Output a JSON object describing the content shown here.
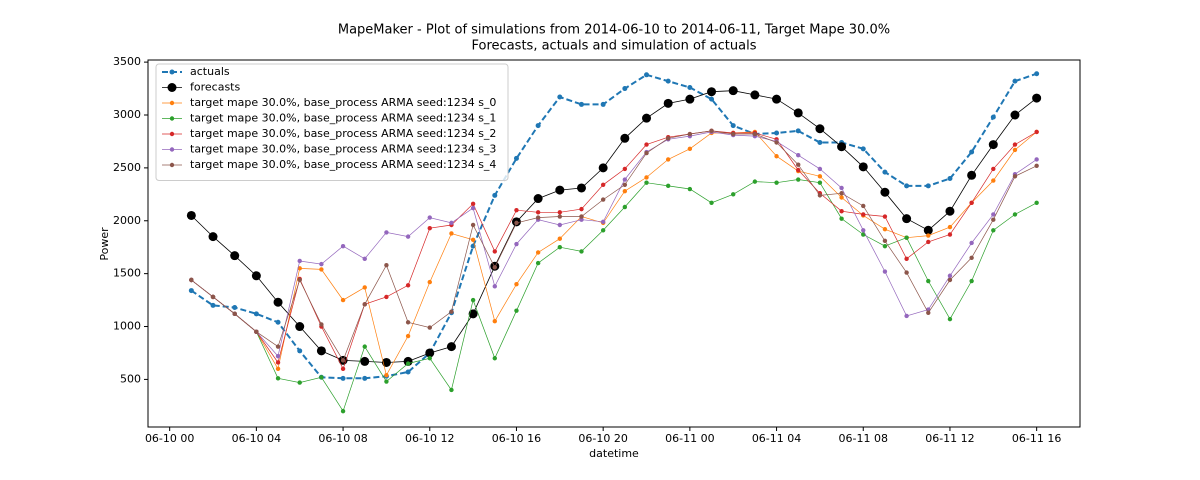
{
  "chart_data": {
    "type": "line",
    "title": "MapeMaker - Plot of simulations from 2014-06-10 to 2014-06-11, Target Mape 30.0%",
    "subtitle": "Forecasts, actuals and simulation of actuals",
    "x_label": "datetime",
    "y_label": "Power",
    "x": [
      "06-10 01",
      "06-10 02",
      "06-10 03",
      "06-10 04",
      "06-10 05",
      "06-10 06",
      "06-10 07",
      "06-10 08",
      "06-10 09",
      "06-10 10",
      "06-10 11",
      "06-10 12",
      "06-10 13",
      "06-10 14",
      "06-10 15",
      "06-10 16",
      "06-10 17",
      "06-10 18",
      "06-10 19",
      "06-10 20",
      "06-10 21",
      "06-10 22",
      "06-10 23",
      "06-11 00",
      "06-11 01",
      "06-11 02",
      "06-11 03",
      "06-11 04",
      "06-11 05",
      "06-11 06",
      "06-11 07",
      "06-11 08",
      "06-11 09",
      "06-11 10",
      "06-11 11",
      "06-11 12",
      "06-11 13",
      "06-11 14",
      "06-11 15",
      "06-11 16"
    ],
    "xlim": [
      "06-09 23",
      "06-11 18"
    ],
    "xticks": [
      "06-10 00",
      "06-10 04",
      "06-10 08",
      "06-10 12",
      "06-10 16",
      "06-10 20",
      "06-11 00",
      "06-11 04",
      "06-11 08",
      "06-11 12",
      "06-11 16"
    ],
    "ylim": [
      50,
      3520
    ],
    "yticks": [
      500,
      1000,
      1500,
      2000,
      2500,
      3000,
      3500
    ],
    "legend": "upper left",
    "series": [
      {
        "name": "actuals",
        "color": "#1f77b4",
        "linestyle": "dashed",
        "linewidth": 2,
        "markersize": 2.5,
        "values": [
          1340,
          1200,
          1180,
          1120,
          1040,
          770,
          520,
          510,
          510,
          530,
          570,
          750,
          1130,
          1760,
          2240,
          2590,
          2900,
          3170,
          3100,
          3100,
          3250,
          3380,
          3320,
          3260,
          3150,
          2900,
          2820,
          2830,
          2850,
          2740,
          2740,
          2680,
          2460,
          2330,
          2330,
          2400,
          2650,
          2980,
          3320,
          3390
        ]
      },
      {
        "name": "forecasts",
        "color": "#000000",
        "linestyle": "solid",
        "linewidth": 0.8,
        "markersize": 4.5,
        "values": [
          2050,
          1850,
          1670,
          1480,
          1230,
          1000,
          770,
          680,
          670,
          660,
          670,
          750,
          810,
          1120,
          1570,
          1990,
          2210,
          2290,
          2310,
          2500,
          2780,
          2970,
          3110,
          3150,
          3220,
          3230,
          3190,
          3150,
          3020,
          2870,
          2700,
          2510,
          2270,
          2020,
          1910,
          2090,
          2430,
          2720,
          3000,
          3160
        ]
      },
      {
        "name": "target mape 30.0%, base_process ARMA  seed:1234 s_0",
        "color": "#ff7f0e",
        "linestyle": "solid",
        "linewidth": 0.7,
        "markersize": 2.2,
        "values": [
          1440,
          1280,
          1120,
          950,
          600,
          1550,
          1540,
          1250,
          1370,
          540,
          910,
          1420,
          1880,
          1820,
          1050,
          1400,
          1700,
          1830,
          2040,
          1980,
          2280,
          2410,
          2580,
          2680,
          2830,
          2830,
          2840,
          2610,
          2470,
          2420,
          2220,
          2050,
          1920,
          1840,
          1860,
          1940,
          2170,
          2380,
          2670,
          2840
        ]
      },
      {
        "name": "target mape 30.0%, base_process ARMA  seed:1234 s_1",
        "color": "#2ca02c",
        "linestyle": "solid",
        "linewidth": 0.7,
        "markersize": 2.2,
        "values": [
          1440,
          1280,
          1120,
          950,
          510,
          470,
          520,
          200,
          810,
          480,
          650,
          700,
          400,
          1250,
          700,
          1150,
          1600,
          1750,
          1710,
          1910,
          2130,
          2360,
          2330,
          2300,
          2170,
          2250,
          2370,
          2360,
          2390,
          2360,
          2020,
          1870,
          1760,
          1840,
          1430,
          1070,
          1430,
          1910,
          2060,
          2170
        ]
      },
      {
        "name": "target mape 30.0%, base_process ARMA  seed:1234 s_2",
        "color": "#d62728",
        "linestyle": "solid",
        "linewidth": 0.7,
        "markersize": 2.2,
        "values": [
          1440,
          1280,
          1120,
          950,
          660,
          1450,
          1000,
          600,
          1210,
          1280,
          1390,
          1930,
          1960,
          2160,
          1710,
          2100,
          2080,
          2080,
          2110,
          2340,
          2490,
          2720,
          2790,
          2820,
          2850,
          2830,
          2830,
          2770,
          2480,
          2260,
          2090,
          2060,
          2040,
          1640,
          1800,
          1870,
          2170,
          2490,
          2720,
          2840
        ]
      },
      {
        "name": "target mape 30.0%, base_process ARMA  seed:1234 s_3",
        "color": "#9467bd",
        "linestyle": "solid",
        "linewidth": 0.7,
        "markersize": 2.2,
        "values": [
          1440,
          1280,
          1120,
          950,
          720,
          1620,
          1590,
          1760,
          1640,
          1890,
          1850,
          2030,
          1980,
          2120,
          1380,
          1780,
          2010,
          1960,
          2010,
          1990,
          2390,
          2650,
          2770,
          2800,
          2840,
          2810,
          2800,
          2750,
          2620,
          2490,
          2310,
          1910,
          1520,
          1100,
          1160,
          1480,
          1790,
          2060,
          2440,
          2580
        ]
      },
      {
        "name": "target mape 30.0%, base_process ARMA  seed:1234 s_4",
        "color": "#8c564b",
        "linestyle": "solid",
        "linewidth": 0.7,
        "markersize": 2.2,
        "values": [
          1440,
          1280,
          1120,
          950,
          810,
          1440,
          1020,
          680,
          1210,
          1580,
          1040,
          990,
          1140,
          1960,
          1560,
          1980,
          2030,
          2040,
          2040,
          2200,
          2340,
          2640,
          2780,
          2820,
          2850,
          2820,
          2820,
          2740,
          2530,
          2240,
          2260,
          2140,
          1810,
          1510,
          1130,
          1440,
          1650,
          2010,
          2420,
          2520
        ]
      }
    ]
  }
}
